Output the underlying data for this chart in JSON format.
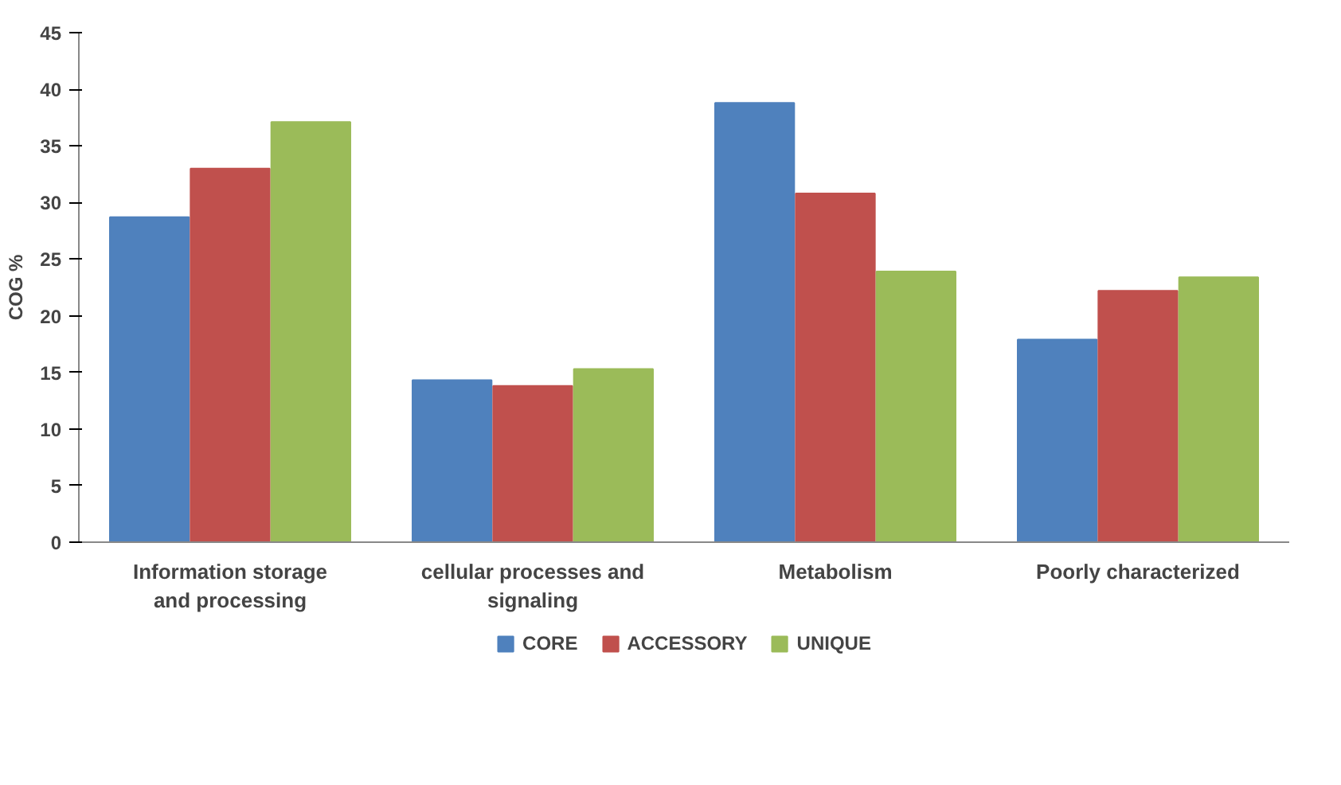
{
  "chart_data": {
    "type": "bar",
    "ylabel": "COG %",
    "categories": [
      "Information storage and processing",
      "cellular processes and signaling",
      "Metabolism",
      "Poorly characterized"
    ],
    "series": [
      {
        "name": "CORE",
        "color": "#4f81bd",
        "values": [
          28.7,
          14.3,
          38.8,
          17.9
        ]
      },
      {
        "name": "ACCESSORY",
        "color": "#c0504d",
        "values": [
          33.0,
          13.8,
          30.8,
          22.2
        ]
      },
      {
        "name": "UNIQUE",
        "color": "#9bbb59",
        "values": [
          37.1,
          15.3,
          23.9,
          23.4
        ]
      }
    ],
    "ylim": [
      0,
      45
    ],
    "yticks": [
      0,
      5,
      10,
      15,
      20,
      25,
      30,
      35,
      40,
      45
    ],
    "grid": false,
    "legend": "bottom"
  }
}
